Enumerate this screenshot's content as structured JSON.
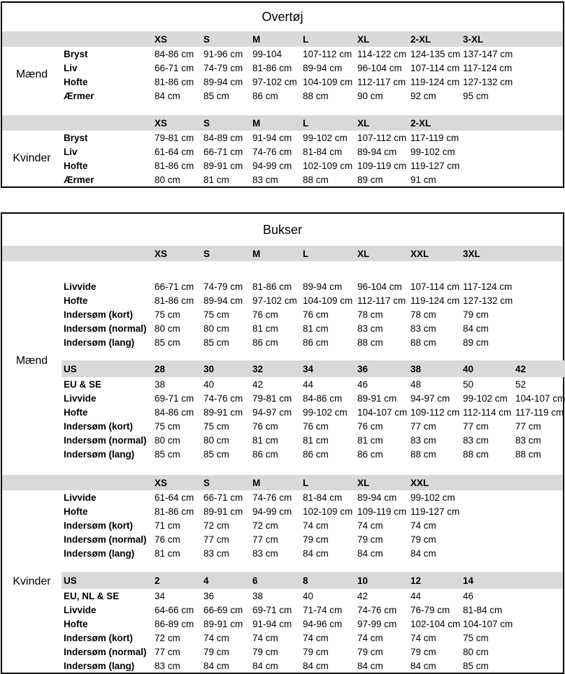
{
  "page": {
    "background": "#ffffff"
  },
  "colors": {
    "band": "#d9d9d9",
    "border": "#000000",
    "text": "#000000"
  },
  "tables": [
    {
      "title": "Overtøj",
      "blocks": [
        {
          "type": "header",
          "cells": [
            "XS",
            "S",
            "M",
            "L",
            "XL",
            "2-XL",
            "3-XL"
          ]
        },
        {
          "type": "group",
          "label": "Mænd",
          "rows": [
            {
              "label": "Bryst",
              "values": [
                "84-86 cm",
                "91-96 cm",
                "99-104",
                "107-112 cm",
                "114-122 cm",
                "124-135 cm",
                "137-147 cm"
              ]
            },
            {
              "label": "Liv",
              "values": [
                "66-71 cm",
                "74-79 cm",
                "81-86 cm",
                "89-94 cm",
                "96-104 cm",
                "107-114 cm",
                "117-124 cm"
              ]
            },
            {
              "label": "Hofte",
              "values": [
                "81-86 cm",
                "89-94 cm",
                "97-102 cm",
                "104-109 cm",
                "112-117 cm",
                "119-124 cm",
                "127-132 cm"
              ]
            },
            {
              "label": "Ærmer",
              "values": [
                "84 cm",
                "85 cm",
                "86 cm",
                "88 cm",
                "90 cm",
                "92 cm",
                "95 cm"
              ]
            }
          ]
        },
        {
          "type": "gap",
          "h": 18
        },
        {
          "type": "header",
          "cells": [
            "XS",
            "S",
            "M",
            "L",
            "XL",
            "2-XL"
          ]
        },
        {
          "type": "group",
          "label": "Kvinder",
          "rows": [
            {
              "label": "Bryst",
              "values": [
                "79-81 cm",
                "84-89 cm",
                "91-94 cm",
                "99-102 cm",
                "107-112 cm",
                "117-119 cm"
              ]
            },
            {
              "label": "Liv",
              "values": [
                "61-64 cm",
                "66-71 cm",
                "74-76 cm",
                "81-84 cm",
                "89-94 cm",
                "99-102 cm"
              ]
            },
            {
              "label": "Hofte",
              "values": [
                "81-86 cm",
                "89-91 cm",
                "94-99 cm",
                "102-109 cm",
                "109-119 cm",
                "119-127 cm"
              ]
            },
            {
              "label": "Ærmer",
              "values": [
                "80 cm",
                "81 cm",
                "83 cm",
                "88 cm",
                "89 cm",
                "91 cm"
              ]
            }
          ]
        }
      ]
    },
    {
      "title": "Bukser",
      "blocks": [
        {
          "type": "header",
          "cells": [
            "XS",
            "S",
            "M",
            "L",
            "XL",
            "XXL",
            "3XL"
          ]
        },
        {
          "type": "group",
          "label": "Mænd",
          "rows": [
            {
              "type": "gap",
              "h": 26
            },
            {
              "label": "Livvide",
              "values": [
                "66-71 cm",
                "74-79 cm",
                "81-86 cm",
                "89-94 cm",
                "96-104 cm",
                "107-114 cm",
                "117-124 cm"
              ]
            },
            {
              "label": "Hofte",
              "values": [
                "81-86 cm",
                "89-94 cm",
                "97-102 cm",
                "104-109 cm",
                "112-117 cm",
                "119-124 cm",
                "127-132 cm"
              ]
            },
            {
              "label": "Indersøm (kort)",
              "values": [
                "75 cm",
                "75 cm",
                "76 cm",
                "76 cm",
                "78 cm",
                "78 cm",
                "79 cm"
              ]
            },
            {
              "label": "Indersøm (normal)",
              "values": [
                "80 cm",
                "80 cm",
                "81 cm",
                "81 cm",
                "83 cm",
                "83 cm",
                "84 cm"
              ]
            },
            {
              "label": "Indersøm (lang)",
              "values": [
                "85 cm",
                "85 cm",
                "86 cm",
                "86 cm",
                "88 cm",
                "88 cm",
                "89 cm"
              ]
            },
            {
              "type": "gap",
              "h": 16
            },
            {
              "type": "usband",
              "label": "US",
              "values": [
                "28",
                "30",
                "32",
                "34",
                "36",
                "38",
                "40",
                "42"
              ]
            },
            {
              "label": "EU & SE",
              "values": [
                "38",
                "40",
                "42",
                "44",
                "46",
                "48",
                "50",
                "52"
              ]
            },
            {
              "label": "Livvide",
              "values": [
                "69-71 cm",
                "74-76 cm",
                "79-81 cm",
                "84-86 cm",
                "89-91 cm",
                "94-97 cm",
                "99-102 cm",
                "104-107 cm"
              ]
            },
            {
              "label": "Hofte",
              "values": [
                "84-86 cm",
                "89-91 cm",
                "94-97 cm",
                "99-102 cm",
                "104-107 cm",
                "109-112 cm",
                "112-114 cm",
                "117-119 cm"
              ]
            },
            {
              "label": "Indersøm (kort)",
              "values": [
                "75 cm",
                "75 cm",
                "76 cm",
                "76 cm",
                "76 cm",
                "77 cm",
                "77 cm",
                "77 cm"
              ]
            },
            {
              "label": "Indersøm (normal)",
              "values": [
                "80 cm",
                "80 cm",
                "81 cm",
                "81 cm",
                "81 cm",
                "83 cm",
                "83 cm",
                "83 cm"
              ]
            },
            {
              "label": "Indersøm (lang)",
              "values": [
                "85 cm",
                "85 cm",
                "86 cm",
                "86 cm",
                "86 cm",
                "88 cm",
                "88 cm",
                "88 cm"
              ]
            }
          ]
        },
        {
          "type": "gap",
          "h": 20
        },
        {
          "type": "header",
          "cells": [
            "XS",
            "S",
            "M",
            "L",
            "XL",
            "XXL"
          ]
        },
        {
          "type": "group",
          "label": "Kvinder",
          "rows": [
            {
              "label": "Livvide",
              "values": [
                "61-64 cm",
                "66-71 cm",
                "74-76 cm",
                "81-84 cm",
                "89-94 cm",
                "99-102 cm"
              ]
            },
            {
              "label": "Hofte",
              "values": [
                "81-86 cm",
                "89-91 cm",
                "94-99 cm",
                "102-109 cm",
                "109-119 cm",
                "119-127 cm"
              ]
            },
            {
              "label": "Indersøm (kort)",
              "values": [
                "71 cm",
                "72 cm",
                "72 cm",
                "74 cm",
                "74 cm",
                "74 cm"
              ]
            },
            {
              "label": "Indersøm (normal)",
              "values": [
                "76 cm",
                "77 cm",
                "77 cm",
                "79 cm",
                "79 cm",
                "79 cm"
              ]
            },
            {
              "label": "Indersøm (lang)",
              "values": [
                "81 cm",
                "83 cm",
                "83 cm",
                "84 cm",
                "84 cm",
                "84 cm"
              ]
            },
            {
              "type": "gap",
              "h": 17
            },
            {
              "type": "usband",
              "label": "US",
              "values": [
                "2",
                "4",
                "6",
                "8",
                "10",
                "12",
                "14"
              ]
            },
            {
              "label": "EU, NL & SE",
              "values": [
                "34",
                "36",
                "38",
                "40",
                "42",
                "44",
                "46"
              ]
            },
            {
              "label": "Livvide",
              "values": [
                "64-66 cm",
                "66-69 cm",
                "69-71 cm",
                "71-74 cm",
                "74-76 cm",
                "76-79 cm",
                "81-84 cm"
              ]
            },
            {
              "label": "Hofte",
              "values": [
                "86-89 cm",
                "89-91 cm",
                "91-94 cm",
                "94-96 cm",
                "97-99 cm",
                "102-104 cm",
                "104-107 cm"
              ]
            },
            {
              "label": "Indersøm (kort)",
              "values": [
                "72 cm",
                "74 cm",
                "74 cm",
                "74 cm",
                "74 cm",
                "74 cm",
                "75 cm"
              ]
            },
            {
              "label": "Indersøm (normal)",
              "values": [
                "77 cm",
                "79 cm",
                "79 cm",
                "79 cm",
                "79 cm",
                "79 cm",
                "80 cm"
              ]
            },
            {
              "label": "Indersøm (lang)",
              "values": [
                "83 cm",
                "84 cm",
                "84 cm",
                "84 cm",
                "84 cm",
                "84 cm",
                "85 cm"
              ]
            }
          ]
        }
      ]
    }
  ]
}
